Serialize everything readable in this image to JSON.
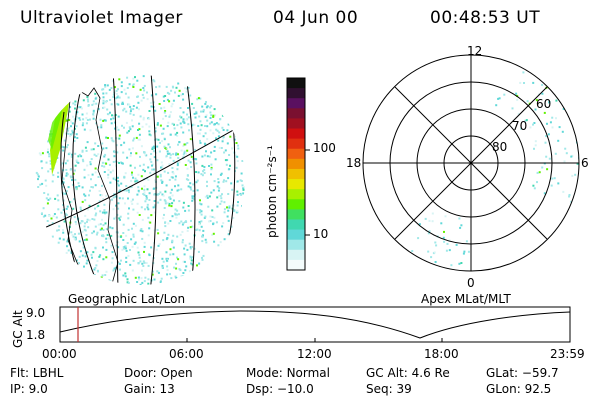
{
  "header": {
    "instrument": "Ultraviolet Imager",
    "date": "04 Jun 00",
    "time": "00:48:53 UT"
  },
  "colorbar": {
    "label": "photon cm⁻²s⁻¹",
    "ticks": [
      "100",
      "10"
    ],
    "colors": [
      "#101010",
      "#301030",
      "#5a1060",
      "#7a1030",
      "#a01020",
      "#d01010",
      "#e03010",
      "#f06010",
      "#f09000",
      "#f0c000",
      "#e8e800",
      "#a8f000",
      "#60f000",
      "#40e060",
      "#40d8b0",
      "#60d8d8",
      "#a0e8e8",
      "#d8f4f4",
      "#f4fcfc"
    ]
  },
  "left_panel": {
    "caption": "Geographic Lat/Lon"
  },
  "right_panel": {
    "caption": "Apex MLat/MLT",
    "mlt_labels": {
      "top": "12",
      "right": "6",
      "bottom": "0",
      "left": "18"
    },
    "lat_labels": [
      "60",
      "70",
      "80"
    ]
  },
  "altitude_plot": {
    "ylabel": "GC Alt",
    "yticks": [
      "9.0",
      "1.8"
    ],
    "xticks": [
      "00:00",
      "06:00",
      "12:00",
      "18:00",
      "23:59"
    ],
    "marker_color": "#c03030"
  },
  "status": {
    "filter": {
      "label": "Flt:",
      "value": "LBHL"
    },
    "ip": {
      "label": "IP:",
      "value": "9.0"
    },
    "door": {
      "label": "Door:",
      "value": "Open"
    },
    "gain": {
      "label": "Gain:",
      "value": "13"
    },
    "mode": {
      "label": "Mode:",
      "value": "Normal"
    },
    "dsp": {
      "label": "Dsp:",
      "value": "−10.0"
    },
    "gc_alt": {
      "label": "GC Alt:",
      "value": "4.6 Re"
    },
    "seq": {
      "label": "Seq:",
      "value": "39"
    },
    "glat": {
      "label": "GLat:",
      "value": "−59.7"
    },
    "glon": {
      "label": "GLon:",
      "value": "92.5"
    }
  }
}
